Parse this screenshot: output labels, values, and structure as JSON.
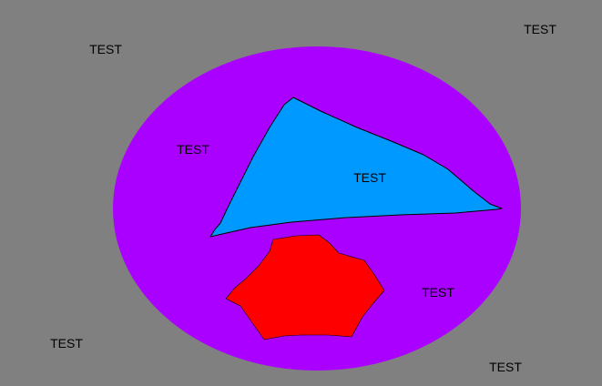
{
  "colors": {
    "background": "#808080",
    "ellipse": "#AA00FF",
    "triangle": "#0099FF",
    "polygon": "#FF0000",
    "outline": "#000000",
    "text": "#000000"
  },
  "labels": [
    "TEST",
    "TEST",
    "TEST",
    "TEST",
    "TEST",
    "TEST",
    "TEST"
  ]
}
